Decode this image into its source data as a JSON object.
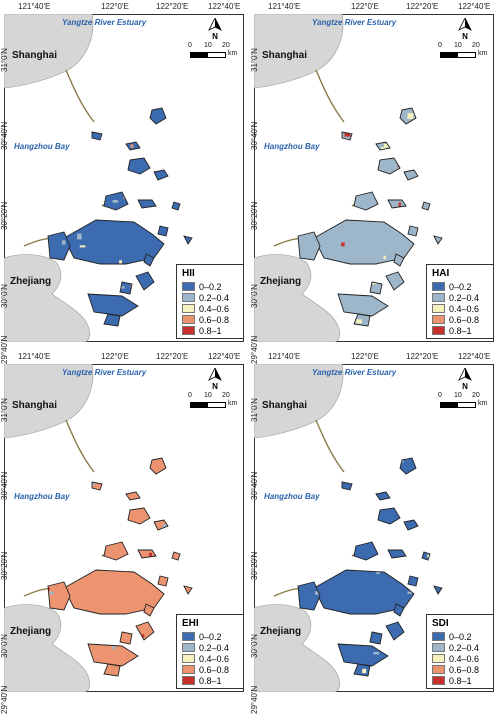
{
  "colors": {
    "class_0_0.2": "#3c6bb0",
    "class_0.2_0.4": "#9eb6c9",
    "class_0.4_0.6": "#f6f2bd",
    "class_0.6_0.8": "#ec9470",
    "class_0.8_1": "#c8302b",
    "land": "#d6d6d6",
    "water": "#ffffff",
    "water_label": "#2a62ad"
  },
  "map_labels": {
    "estuary": "Yangtze River Estuary",
    "bay": "Hangzhou Bay",
    "city": "Shanghai",
    "province": "Zhejiang"
  },
  "longitude_ticks": [
    "121°40'E",
    "122°0'E",
    "122°20'E",
    "122°40'E"
  ],
  "latitude_ticks": [
    "31°0'N",
    "30°40'N",
    "30°20'N",
    "30°0'N",
    "29°40'N"
  ],
  "scale_bar": {
    "values": [
      "0",
      "10",
      "20"
    ],
    "unit": "km"
  },
  "north_arrow": {
    "label": "N"
  },
  "legend_classes": [
    "0–0.2",
    "0.2–0.4",
    "0.4–0.6",
    "0.6–0.8",
    "0.8–1"
  ],
  "panels": [
    {
      "title": "HII",
      "dominant": [
        "#3c6bb0",
        "#9eb6c9",
        "#ec9470"
      ]
    },
    {
      "title": "HAI",
      "dominant": [
        "#9eb6c9",
        "#f6f2bd",
        "#c8302b"
      ]
    },
    {
      "title": "EHI",
      "dominant": [
        "#ec9470",
        "#c8302b",
        "#9eb6c9"
      ]
    },
    {
      "title": "SDI",
      "dominant": [
        "#3c6bb0",
        "#3c6bb0",
        "#9eb6c9"
      ]
    }
  ]
}
